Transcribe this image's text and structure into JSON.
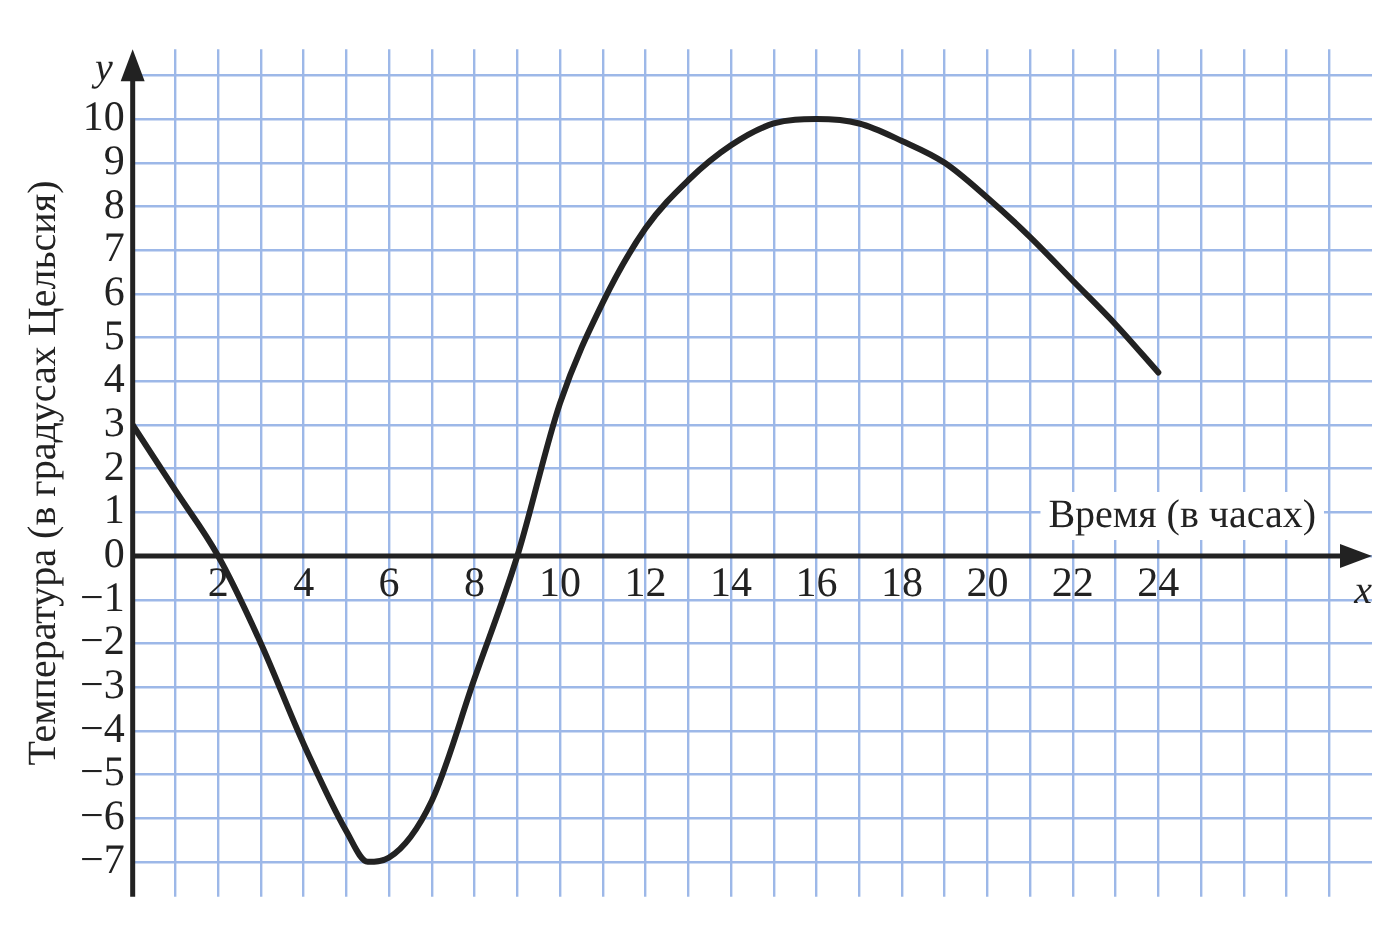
{
  "chart_data": {
    "type": "line",
    "xlabel": "Время (в часах)",
    "ylabel": "Температура (в градусах Цельсия)",
    "annotations": [
      "y",
      "x"
    ],
    "x": [
      0,
      1,
      2,
      3,
      4,
      5,
      5.5,
      6,
      7,
      8,
      9,
      10,
      11,
      12,
      13,
      14,
      15,
      16,
      17,
      18,
      19,
      20,
      21,
      22,
      23,
      24
    ],
    "series": [
      {
        "color": "#222222",
        "values": [
          3,
          1.5,
          0,
          -2,
          -4.3,
          -6.3,
          -7,
          -6.9,
          -5.6,
          -2.8,
          0,
          3.5,
          5.8,
          7.5,
          8.6,
          9.4,
          9.9,
          10,
          9.9,
          9.5,
          9,
          8.2,
          7.3,
          6.3,
          5.3,
          4.2
        ]
      }
    ],
    "xlim": [
      0,
      29
    ],
    "ylim": [
      -7.8,
      11.6
    ],
    "xticks": [
      {
        "value": 1,
        "label": null
      },
      2,
      {
        "value": 3,
        "label": null
      },
      4,
      {
        "value": 5,
        "label": null
      },
      6,
      {
        "value": 7,
        "label": null
      },
      8,
      {
        "value": 9,
        "label": null
      },
      10,
      {
        "value": 11,
        "label": null
      },
      12,
      {
        "value": 13,
        "label": null
      },
      14,
      {
        "value": 15,
        "label": null
      },
      16,
      {
        "value": 17,
        "label": null
      },
      18,
      {
        "value": 19,
        "label": null
      },
      20,
      {
        "value": 21,
        "label": null
      },
      22,
      {
        "value": 23,
        "label": null
      },
      24,
      {
        "value": 25,
        "label": null
      },
      {
        "value": 26,
        "label": null
      },
      {
        "value": 27,
        "label": null
      },
      {
        "value": 28,
        "label": null
      }
    ],
    "yticks": [
      -7,
      -6,
      -5,
      -4,
      -3,
      -2,
      -1,
      0,
      1,
      2,
      3,
      4,
      5,
      6,
      7,
      8,
      9,
      10,
      {
        "value": 11,
        "label": null
      }
    ],
    "grid": true,
    "legend": false,
    "marker": "none",
    "line_style": "solid"
  }
}
